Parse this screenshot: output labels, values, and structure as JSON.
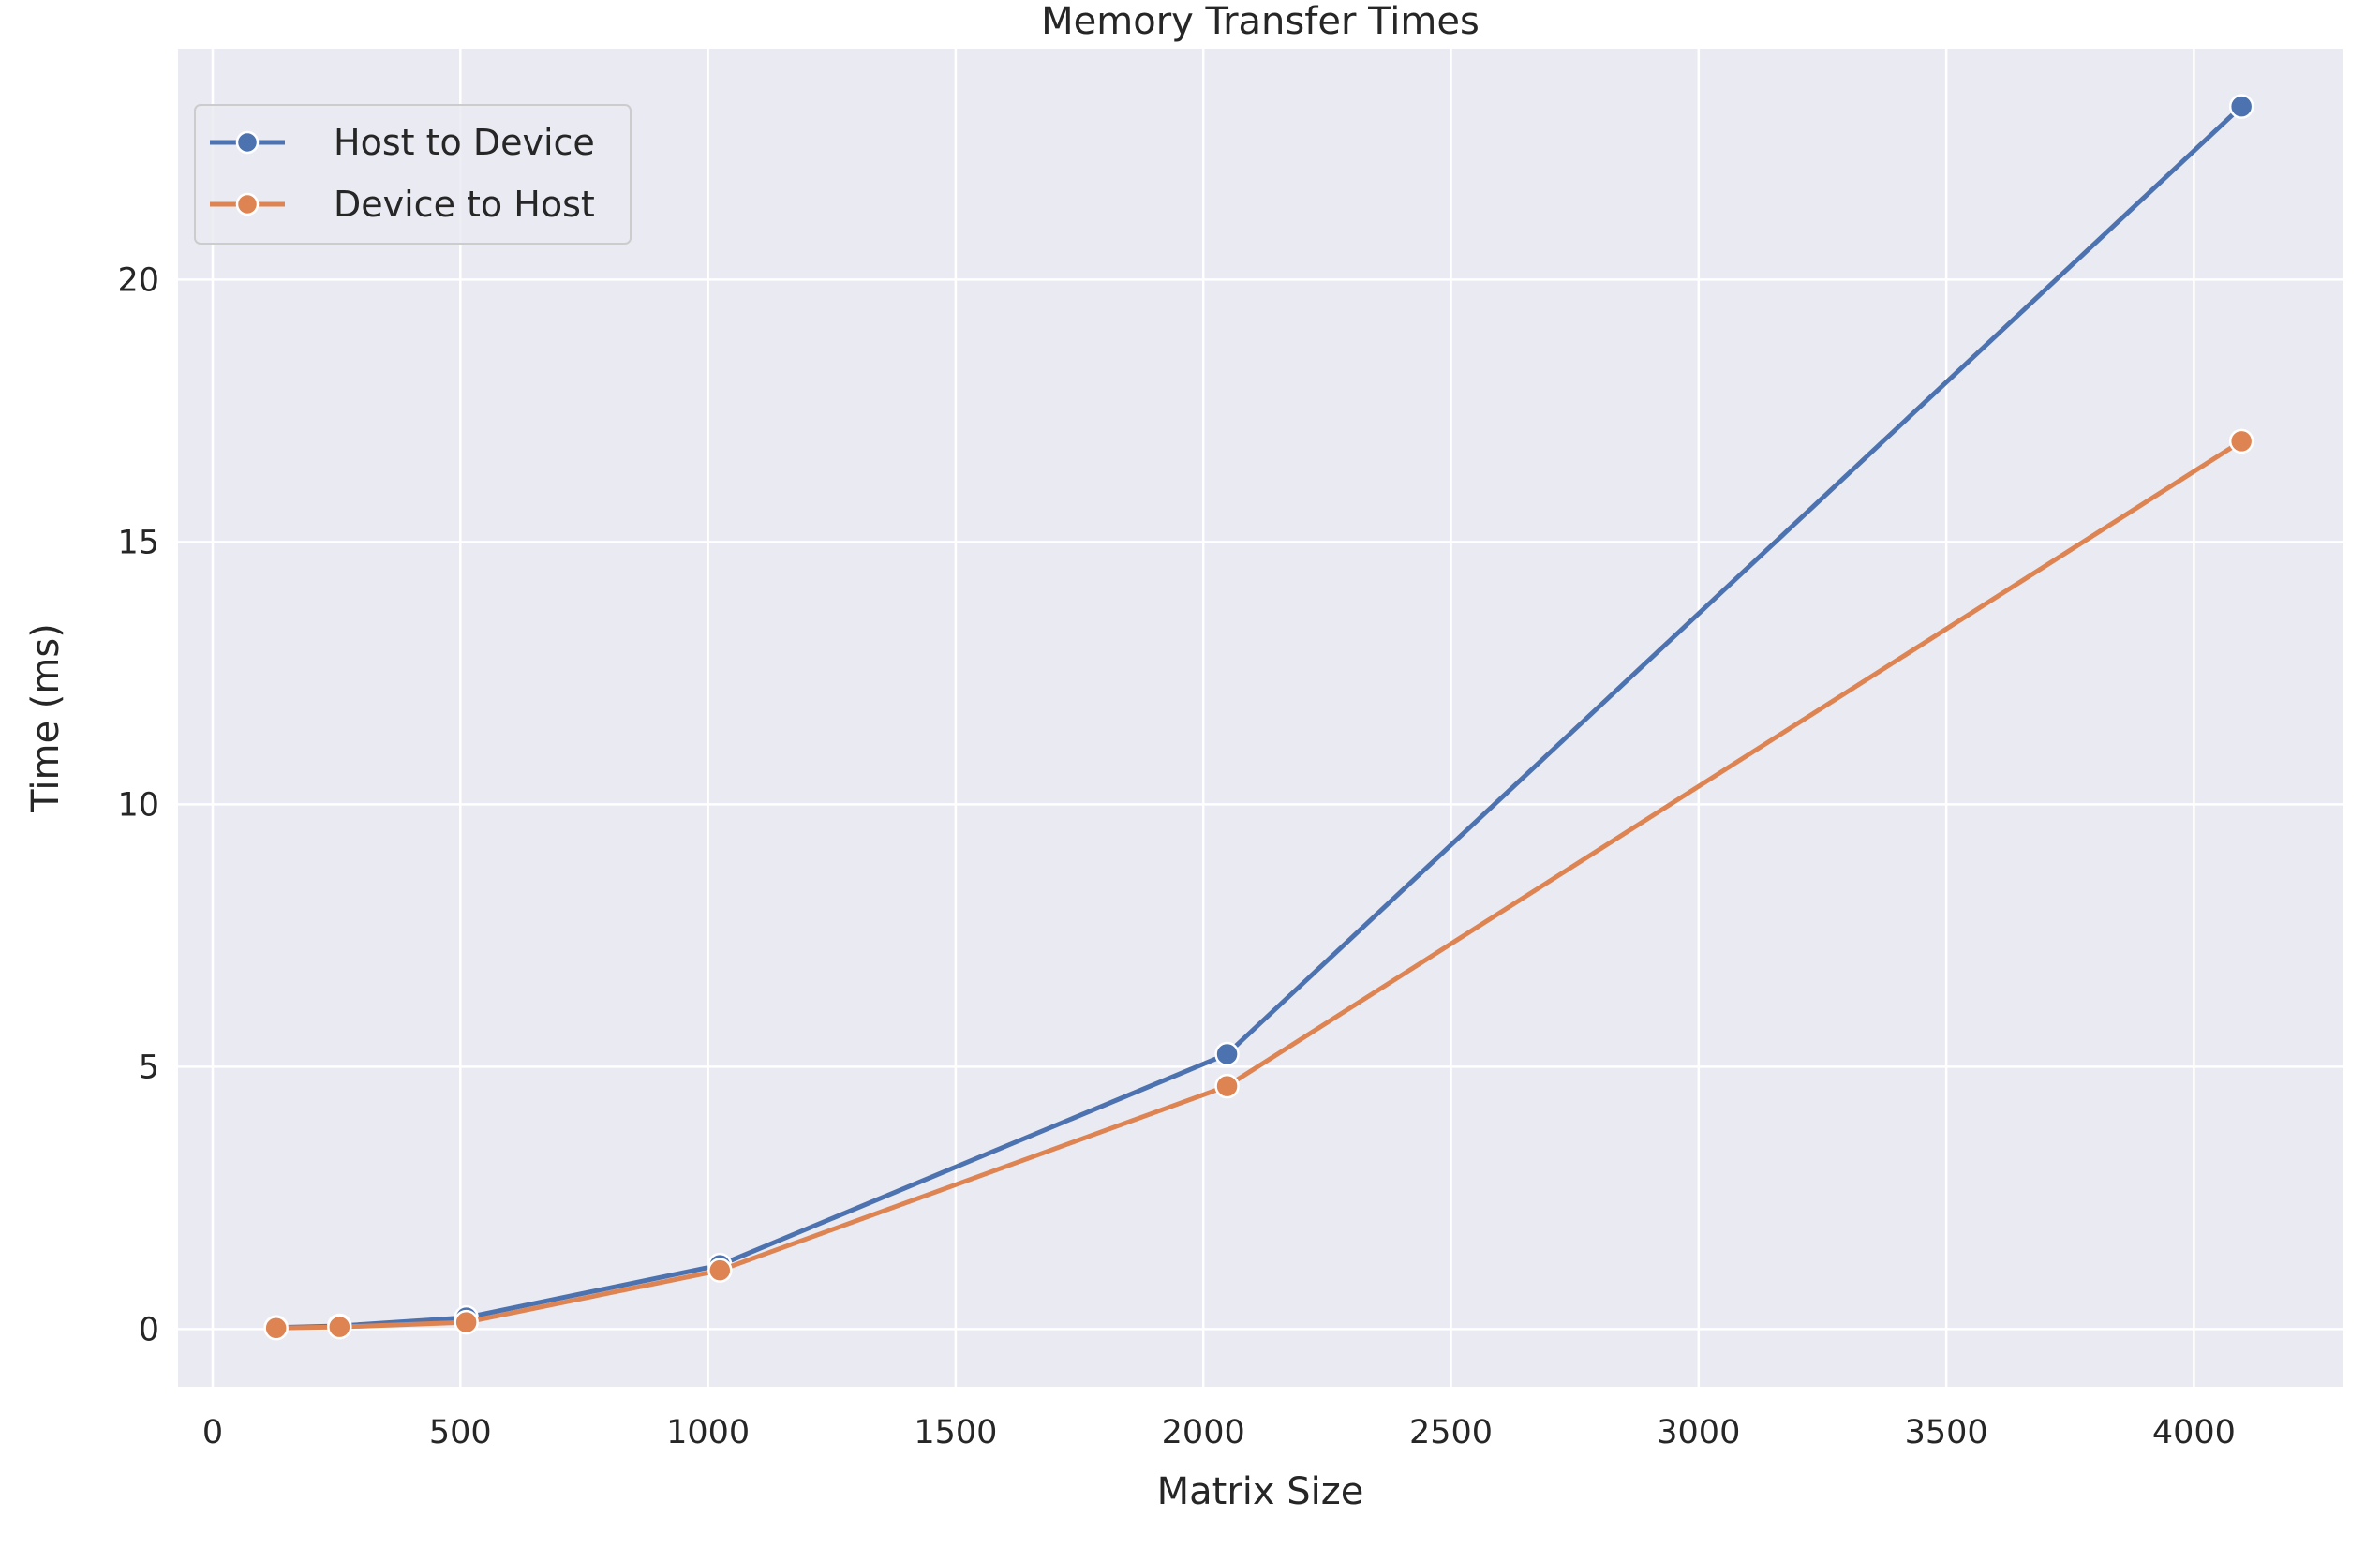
{
  "chart_data": {
    "type": "line",
    "title": "Memory Transfer Times",
    "xlabel": "Matrix Size",
    "ylabel": "Time (ms)",
    "xlim": [
      -70,
      4300
    ],
    "ylim": [
      -1.1,
      24.4
    ],
    "x_ticks": [
      0,
      500,
      1000,
      1500,
      2000,
      2500,
      3000,
      3500,
      4000
    ],
    "y_ticks": [
      0,
      5,
      10,
      15,
      20
    ],
    "grid": true,
    "legend_position": "top-left",
    "colors": {
      "background": "#eaeaf2",
      "grid": "#ffffff",
      "host_to_device": "#4c72b0",
      "device_to_host": "#dd8452"
    },
    "x": [
      128,
      256,
      512,
      1024,
      2048,
      4096
    ],
    "series": [
      {
        "name": "Host to Device",
        "color": "#4c72b0",
        "values": [
          0.03,
          0.06,
          0.22,
          1.22,
          5.24,
          23.3
        ]
      },
      {
        "name": "Device to Host",
        "color": "#dd8452",
        "values": [
          0.02,
          0.04,
          0.13,
          1.12,
          4.63,
          16.92
        ]
      }
    ]
  }
}
